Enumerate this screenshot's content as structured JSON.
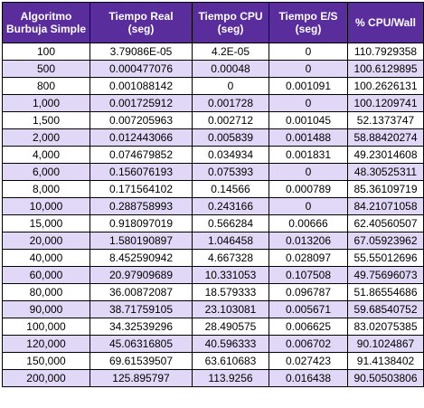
{
  "headers": [
    [
      "Algoritmo",
      "Burbuja Simple"
    ],
    [
      "Tiempo Real",
      "(seg)"
    ],
    [
      "Tiempo CPU",
      "(seg)"
    ],
    [
      "Tiempo E/S",
      "(seg)"
    ],
    [
      "% CPU/Wall"
    ]
  ],
  "rows": [
    [
      "100",
      "3.79086E-05",
      "4.2E-05",
      "0",
      "110.7929358"
    ],
    [
      "500",
      "0.000477076",
      "0.00048",
      "0",
      "100.6129895"
    ],
    [
      "800",
      "0.001088142",
      "0",
      "0.001091",
      "100.2626131"
    ],
    [
      "1,000",
      "0.001725912",
      "0.001728",
      "0",
      "100.1209741"
    ],
    [
      "1,500",
      "0.007205963",
      "0.002712",
      "0.001045",
      "52.1373747"
    ],
    [
      "2,000",
      "0.012443066",
      "0.005839",
      "0.001488",
      "58.88420274"
    ],
    [
      "4,000",
      "0.074679852",
      "0.034934",
      "0.001831",
      "49.23014608"
    ],
    [
      "6,000",
      "0.156076193",
      "0.075393",
      "0",
      "48.30525311"
    ],
    [
      "8,000",
      "0.171564102",
      "0.14566",
      "0.000789",
      "85.36109719"
    ],
    [
      "10,000",
      "0.288758993",
      "0.243166",
      "0",
      "84.21071058"
    ],
    [
      "15,000",
      "0.918097019",
      "0.566284",
      "0.00666",
      "62.40560507"
    ],
    [
      "20,000",
      "1.580190897",
      "1.046458",
      "0.013206",
      "67.05923962"
    ],
    [
      "40,000",
      "8.452590942",
      "4.667328",
      "0.028097",
      "55.55012696"
    ],
    [
      "60,000",
      "20.97909689",
      "10.331053",
      "0.107508",
      "49.75696073"
    ],
    [
      "80,000",
      "36.00872087",
      "18.579333",
      "0.096787",
      "51.86554686"
    ],
    [
      "90,000",
      "38.71759105",
      "23.103081",
      "0.005671",
      "59.68540752"
    ],
    [
      "100,000",
      "34.32539296",
      "28.490575",
      "0.006625",
      "83.02075385"
    ],
    [
      "120,000",
      "45.06316805",
      "40.596333",
      "0.006702",
      "90.1024867"
    ],
    [
      "150,000",
      "69.61539507",
      "63.610683",
      "0.027423",
      "91.4138402"
    ],
    [
      "200,000",
      "125.895797",
      "113.9256",
      "0.016438",
      "90.50503806"
    ]
  ]
}
